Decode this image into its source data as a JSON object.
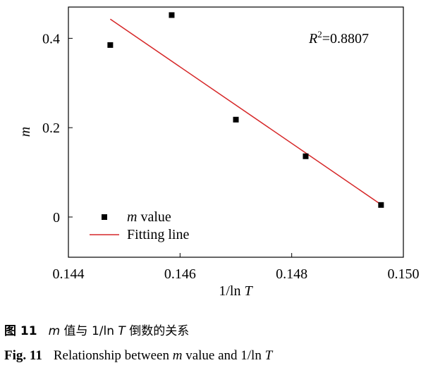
{
  "chart_data": {
    "type": "scatter",
    "xlabel_prefix": "1/ln",
    "xlabel_var": "T",
    "ylabel": "m",
    "xlim": [
      0.144,
      0.15
    ],
    "ylim": [
      -0.09,
      0.47
    ],
    "xticks": [
      0.144,
      0.146,
      0.148,
      0.15
    ],
    "xtick_labels": [
      "0.144",
      "0.146",
      "0.148",
      "0.150"
    ],
    "yticks": [
      0,
      0.2,
      0.4
    ],
    "ytick_labels": [
      "0",
      "0.2",
      "0.4"
    ],
    "grid": false,
    "legend_position": "bottom-left",
    "series": [
      {
        "name_var": "m",
        "name_text": " value",
        "kind": "scatter",
        "color": "#000000",
        "x": [
          0.14475,
          0.14585,
          0.147,
          0.14825,
          0.1496
        ],
        "y": [
          0.385,
          0.452,
          0.218,
          0.136,
          0.027
        ]
      },
      {
        "name": "Fitting line",
        "kind": "line",
        "color": "#d62728",
        "x": [
          0.14475,
          0.1496
        ],
        "y": [
          0.443,
          0.028
        ]
      }
    ],
    "annotation": {
      "prefix": "R",
      "sup": "2",
      "value": "=0.8807"
    }
  },
  "caption_cn": {
    "num": "图 11",
    "var": "m",
    "text": " 值与 1/ln ",
    "var2": "T",
    "text2": " 倒数的关系"
  },
  "caption_en": {
    "num": "Fig. 11",
    "text": "Relationship between ",
    "var": "m",
    "text2": " value and 1/ln ",
    "var2": "T"
  }
}
